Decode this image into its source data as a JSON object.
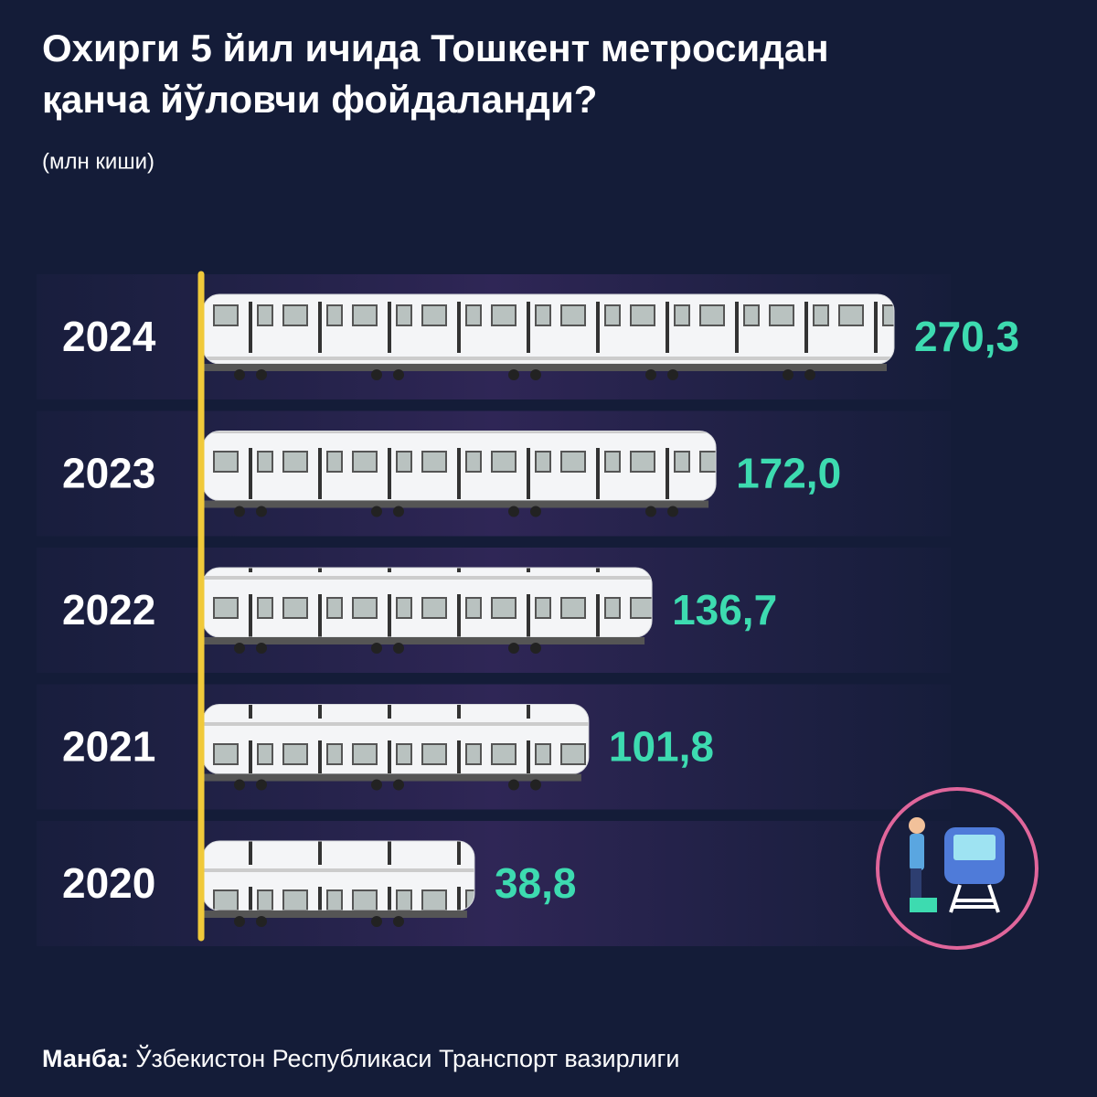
{
  "chart_data": {
    "type": "bar",
    "orientation": "horizontal",
    "title_lines": [
      "Охирги 5 йил ичида Тошкент метросидан",
      "қанча йўловчи фойдаланди?"
    ],
    "subtitle": "(млн киши)",
    "categories": [
      "2024",
      "2023",
      "2022",
      "2021",
      "2020"
    ],
    "values": [
      270.3,
      172.0,
      136.7,
      101.8,
      38.8
    ],
    "value_labels": [
      "270,3",
      "172,0",
      "136,7",
      "101,8",
      "38,8"
    ],
    "color": "#f4f5f7",
    "label_color": "#3ddbb0",
    "source_label": "Манба:",
    "source": "Ўзбекистон Республикаси Транспорт вазирлиги"
  }
}
